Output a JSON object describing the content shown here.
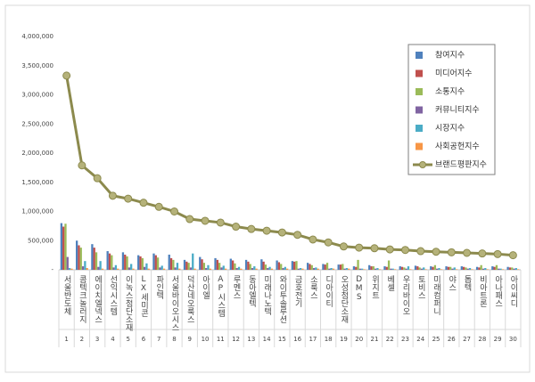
{
  "chart_data": {
    "type": "bar_line",
    "categories": [
      "서울반도체",
      "콤텍크놀러지",
      "에이치엘넥스",
      "선익시스템",
      "이녹스첨단소재",
      "LX세미콘",
      "파인텍",
      "서울바이오시스",
      "덕산네오룩스",
      "아이엘",
      "AP시스템",
      "루멘스",
      "동아엘텍",
      "미래나노텍",
      "와이투솔루션",
      "금호전기",
      "소룩스",
      "디아이티",
      "오성첨단소재",
      "DMS",
      "위지트",
      "베셀",
      "우리바이오",
      "토비스",
      "미래컴퍼니",
      "야스",
      "톱텍",
      "비아트론",
      "아나패스",
      "아이씨디"
    ],
    "ranks": [
      1,
      2,
      3,
      4,
      5,
      6,
      7,
      8,
      9,
      10,
      11,
      12,
      13,
      14,
      15,
      16,
      17,
      18,
      19,
      20,
      21,
      22,
      23,
      24,
      25,
      26,
      27,
      28,
      29,
      30
    ],
    "ylim": [
      0,
      4000000
    ],
    "yticks": [
      {
        "value": 0,
        "label": "-"
      },
      {
        "value": 500000,
        "label": "500,000"
      },
      {
        "value": 1000000,
        "label": "1,000,000"
      },
      {
        "value": 1500000,
        "label": "1,500,000"
      },
      {
        "value": 2000000,
        "label": "2,000,000"
      },
      {
        "value": 2500000,
        "label": "2,500,000"
      },
      {
        "value": 3000000,
        "label": "3,000,000"
      },
      {
        "value": 3500000,
        "label": "3,500,000"
      },
      {
        "value": 4000000,
        "label": "4,000,000"
      }
    ],
    "series": [
      {
        "name": "참여지수",
        "color": "#4f81bd",
        "values": [
          800000,
          500000,
          440000,
          320000,
          300000,
          250000,
          280000,
          260000,
          170000,
          220000,
          200000,
          190000,
          170000,
          180000,
          160000,
          150000,
          120000,
          100000,
          90000,
          60000,
          80000,
          60000,
          60000,
          70000,
          60000,
          60000,
          60000,
          50000,
          60000,
          50000
        ]
      },
      {
        "name": "미디어지수",
        "color": "#c0504d",
        "values": [
          740000,
          420000,
          380000,
          280000,
          260000,
          230000,
          250000,
          200000,
          140000,
          180000,
          170000,
          160000,
          140000,
          140000,
          130000,
          140000,
          100000,
          90000,
          90000,
          50000,
          60000,
          50000,
          50000,
          60000,
          50000,
          50000,
          50000,
          40000,
          50000,
          40000
        ]
      },
      {
        "name": "소통지수",
        "color": "#9bbb59",
        "values": [
          790000,
          380000,
          300000,
          250000,
          230000,
          200000,
          210000,
          170000,
          120000,
          120000,
          120000,
          110000,
          100000,
          90000,
          100000,
          150000,
          80000,
          120000,
          100000,
          170000,
          60000,
          160000,
          40000,
          40000,
          80000,
          50000,
          40000,
          80000,
          80000,
          40000
        ]
      },
      {
        "name": "커뮤니티지수",
        "color": "#8064a2",
        "values": [
          220000,
          60000,
          50000,
          40000,
          40000,
          50000,
          40000,
          40000,
          40000,
          30000,
          40000,
          30000,
          30000,
          30000,
          30000,
          20000,
          30000,
          20000,
          20000,
          20000,
          20000,
          20000,
          20000,
          20000,
          20000,
          20000,
          20000,
          20000,
          20000,
          20000
        ]
      },
      {
        "name": "시장지수",
        "color": "#4bacc6",
        "values": [
          30000,
          150000,
          150000,
          80000,
          100000,
          110000,
          70000,
          120000,
          280000,
          80000,
          70000,
          50000,
          60000,
          50000,
          50000,
          30000,
          40000,
          30000,
          30000,
          20000,
          30000,
          20000,
          60000,
          40000,
          30000,
          40000,
          30000,
          30000,
          20000,
          30000
        ]
      },
      {
        "name": "사회공헌지수",
        "color": "#f79646",
        "values": [
          20000,
          30000,
          20000,
          20000,
          20000,
          20000,
          20000,
          20000,
          20000,
          20000,
          20000,
          20000,
          20000,
          20000,
          20000,
          20000,
          20000,
          20000,
          20000,
          10000,
          10000,
          10000,
          10000,
          10000,
          10000,
          10000,
          10000,
          10000,
          10000,
          10000
        ]
      },
      {
        "name": "브랜드평판지수",
        "color": "#8c8a4d",
        "line": true,
        "values": [
          3330000,
          1790000,
          1570000,
          1270000,
          1220000,
          1150000,
          1080000,
          1000000,
          870000,
          840000,
          810000,
          740000,
          700000,
          670000,
          640000,
          600000,
          520000,
          470000,
          400000,
          380000,
          370000,
          350000,
          340000,
          320000,
          310000,
          300000,
          290000,
          280000,
          270000,
          250000
        ]
      }
    ]
  }
}
